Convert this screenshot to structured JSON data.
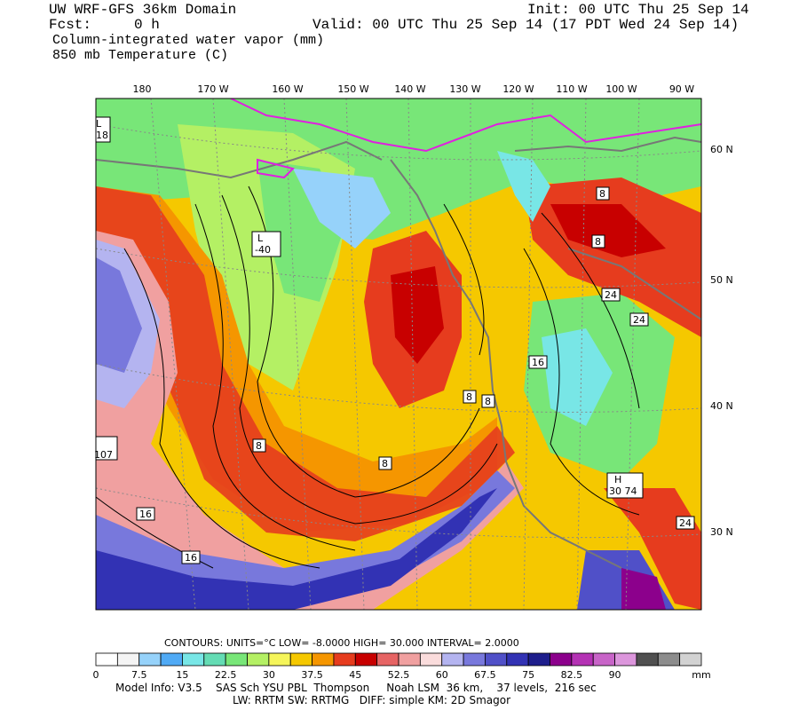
{
  "header": {
    "lines": [
      "UW WRF-GFS 36km Domain",
      "Fcst:     0 h",
      "Column-integrated water vapor (mm)",
      "850 mb Temperature (C)"
    ],
    "init": "Init: 00 UTC Thu 25 Sep 14",
    "valid": "Valid: 00 UTC Thu 25 Sep 14 (17 PDT Wed 24 Sep 14)"
  },
  "map": {
    "longitude_labels": [
      "180",
      "170 W",
      "160 W",
      "150 W",
      "140 W",
      "130 W",
      "120 W",
      "110 W",
      "100 W",
      "90 W"
    ],
    "latitude_labels": [
      "60 N",
      "50 N",
      "40 N",
      "30 N"
    ],
    "contour_labels": [
      "L",
      "-40",
      "8",
      "8",
      "8",
      "8",
      "8",
      "8",
      "16",
      "16",
      "16",
      "24",
      "24",
      "24",
      "H",
      "30 74",
      "107",
      "L",
      "18"
    ]
  },
  "legend": {
    "contours": "CONTOURS:  UNITS=°C  LOW= -8.0000      HIGH= 30.000      INTERVAL=   2.0000",
    "scale": {
      "lim": [
        0,
        105
      ],
      "ticks": [
        0,
        7.5,
        15,
        22.5,
        30,
        37.5,
        45,
        52.5,
        60,
        67.5,
        75,
        82.5,
        90
      ],
      "unit": "mm",
      "colors": [
        "#ffffff",
        "#f4f4f4",
        "#96d2fa",
        "#50aaf5",
        "#78e6e6",
        "#64dcb4",
        "#78e678",
        "#b4f064",
        "#f5f55a",
        "#f5c800",
        "#f59600",
        "#e63c1e",
        "#c80000",
        "#e66464",
        "#f0a0a0",
        "#fadcdc",
        "#b4b4f0",
        "#7878dc",
        "#5050c8",
        "#3232b4",
        "#1e1e8c",
        "#8c008c",
        "#b432b4",
        "#c864c8",
        "#dc96dc",
        "#505050",
        "#8c8c8c",
        "#d2d2d2"
      ]
    }
  },
  "footer": [
    "Model Info: V3.5    SAS Sch YSU PBL  Thompson     Noah LSM  36 km,    37 levels,  216 sec",
    "LW: RRTM SW: RRTMG   DIFF: simple KM: 2D Smagor"
  ]
}
